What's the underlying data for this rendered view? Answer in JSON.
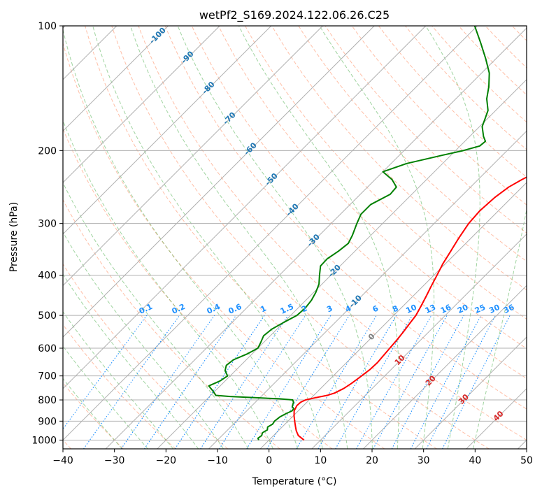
{
  "chart_data": {
    "type": "line",
    "title": "wetPf2_S169.2024.122.06.26.C25",
    "xlabel": "Temperature (°C)",
    "ylabel": "Pressure (hPa)",
    "xlim": [
      -40,
      50
    ],
    "ylim": [
      1050,
      100
    ],
    "y_scale": "log",
    "x_ticks": [
      -40,
      -30,
      -20,
      -10,
      0,
      10,
      20,
      30,
      40,
      50
    ],
    "x_tick_labels": [
      "−40",
      "−30",
      "−20",
      "−10",
      "0",
      "10",
      "20",
      "30",
      "40",
      "50"
    ],
    "y_ticks": [
      100,
      200,
      300,
      400,
      500,
      600,
      700,
      800,
      900,
      1000
    ],
    "y_tick_labels": [
      "100",
      "200",
      "300",
      "400",
      "500",
      "600",
      "700",
      "800",
      "900",
      "1000"
    ],
    "grid": true,
    "skew": 45,
    "colors": {
      "temperature": "#ff0000",
      "dewpoint": "#008000",
      "dry_adiabat": "#ff7f50",
      "moist_adiabat": "#2ca02c",
      "mixing_ratio": "#1e90ff",
      "grid": "#b0b0b0",
      "isotherm_label_cold": "#1f77b4",
      "isotherm_label_zero": "#808080",
      "isotherm_label_warm": "#d62728"
    },
    "series": [
      {
        "name": "temperature",
        "points": [
          [
            1000,
            6.8
          ],
          [
            975,
            4.8
          ],
          [
            950,
            3.5
          ],
          [
            925,
            2.4
          ],
          [
            900,
            1.3
          ],
          [
            875,
            0.2
          ],
          [
            850,
            -0.8
          ],
          [
            825,
            -1.3
          ],
          [
            810,
            -1.2
          ],
          [
            800,
            -0.7
          ],
          [
            790,
            0.8
          ],
          [
            780,
            2.6
          ],
          [
            770,
            3.6
          ],
          [
            750,
            4.5
          ],
          [
            730,
            5.0
          ],
          [
            700,
            5.5
          ],
          [
            675,
            5.9
          ],
          [
            650,
            6.0
          ],
          [
            625,
            5.8
          ],
          [
            600,
            5.6
          ],
          [
            575,
            5.4
          ],
          [
            550,
            5.1
          ],
          [
            525,
            4.7
          ],
          [
            500,
            4.3
          ],
          [
            475,
            3.5
          ],
          [
            450,
            2.6
          ],
          [
            425,
            1.6
          ],
          [
            400,
            0.6
          ],
          [
            375,
            -0.5
          ],
          [
            350,
            -1.4
          ],
          [
            325,
            -2.4
          ],
          [
            300,
            -3.3
          ],
          [
            280,
            -3.6
          ],
          [
            260,
            -3.3
          ],
          [
            245,
            -2.6
          ],
          [
            235,
            -1.5
          ],
          [
            225,
            0.0
          ],
          [
            215,
            1.8
          ],
          [
            205,
            3.5
          ],
          [
            200,
            4.8
          ],
          [
            190,
            7.3
          ],
          [
            180,
            9.2
          ],
          [
            175,
            10.0
          ],
          [
            170,
            10.5
          ],
          [
            165,
            11.6
          ],
          [
            160,
            13.0
          ],
          [
            150,
            15.9
          ],
          [
            140,
            18.9
          ],
          [
            130,
            22.4
          ],
          [
            120,
            25.5
          ],
          [
            112,
            27.5
          ],
          [
            106,
            28.8
          ],
          [
            100,
            29.5
          ]
        ]
      },
      {
        "name": "dewpoint",
        "points": [
          [
            1000,
            -2.0
          ],
          [
            990,
            -2.5
          ],
          [
            975,
            -2.3
          ],
          [
            960,
            -2.7
          ],
          [
            945,
            -2.3
          ],
          [
            930,
            -2.8
          ],
          [
            915,
            -2.4
          ],
          [
            900,
            -2.6
          ],
          [
            880,
            -2.4
          ],
          [
            865,
            -1.9
          ],
          [
            850,
            -1.2
          ],
          [
            840,
            -1.3
          ],
          [
            830,
            -2.0
          ],
          [
            820,
            -2.3
          ],
          [
            810,
            -2.6
          ],
          [
            800,
            -3.2
          ],
          [
            795,
            -6.0
          ],
          [
            790,
            -11.0
          ],
          [
            785,
            -16.0
          ],
          [
            780,
            -19.0
          ],
          [
            760,
            -20.5
          ],
          [
            740,
            -22.2
          ],
          [
            720,
            -21.0
          ],
          [
            700,
            -20.5
          ],
          [
            680,
            -22.0
          ],
          [
            660,
            -22.8
          ],
          [
            640,
            -22.5
          ],
          [
            620,
            -21.0
          ],
          [
            600,
            -20.0
          ],
          [
            580,
            -20.6
          ],
          [
            560,
            -21.3
          ],
          [
            540,
            -21.0
          ],
          [
            520,
            -20.0
          ],
          [
            500,
            -18.8
          ],
          [
            480,
            -18.6
          ],
          [
            460,
            -18.9
          ],
          [
            440,
            -19.6
          ],
          [
            420,
            -20.6
          ],
          [
            400,
            -22.2
          ],
          [
            380,
            -23.8
          ],
          [
            365,
            -23.9
          ],
          [
            350,
            -23.2
          ],
          [
            335,
            -22.8
          ],
          [
            320,
            -23.6
          ],
          [
            300,
            -25.0
          ],
          [
            285,
            -26.0
          ],
          [
            270,
            -26.0
          ],
          [
            255,
            -24.2
          ],
          [
            245,
            -24.4
          ],
          [
            235,
            -26.7
          ],
          [
            225,
            -30.0
          ],
          [
            215,
            -27.0
          ],
          [
            205,
            -21.5
          ],
          [
            200,
            -18.5
          ],
          [
            195,
            -16.2
          ],
          [
            190,
            -16.0
          ],
          [
            185,
            -17.3
          ],
          [
            175,
            -19.5
          ],
          [
            168,
            -20.4
          ],
          [
            160,
            -21.5
          ],
          [
            150,
            -24.0
          ],
          [
            140,
            -26.0
          ],
          [
            130,
            -28.5
          ],
          [
            120,
            -32.0
          ],
          [
            110,
            -36.0
          ],
          [
            100,
            -40.5
          ]
        ]
      }
    ],
    "mixing_ratio_labels": [
      "0.1",
      "0.2",
      "0.4",
      "0.6",
      "1",
      "1.5",
      "2",
      "3",
      "4",
      "6",
      "8",
      "10",
      "13",
      "16",
      "20",
      "25",
      "30",
      "36"
    ],
    "isotherm_labels": [
      "-100",
      "-90",
      "-80",
      "-70",
      "-60",
      "-50",
      "-40",
      "-30",
      "-20",
      "-10",
      "0",
      "10",
      "20",
      "30",
      "40"
    ]
  }
}
